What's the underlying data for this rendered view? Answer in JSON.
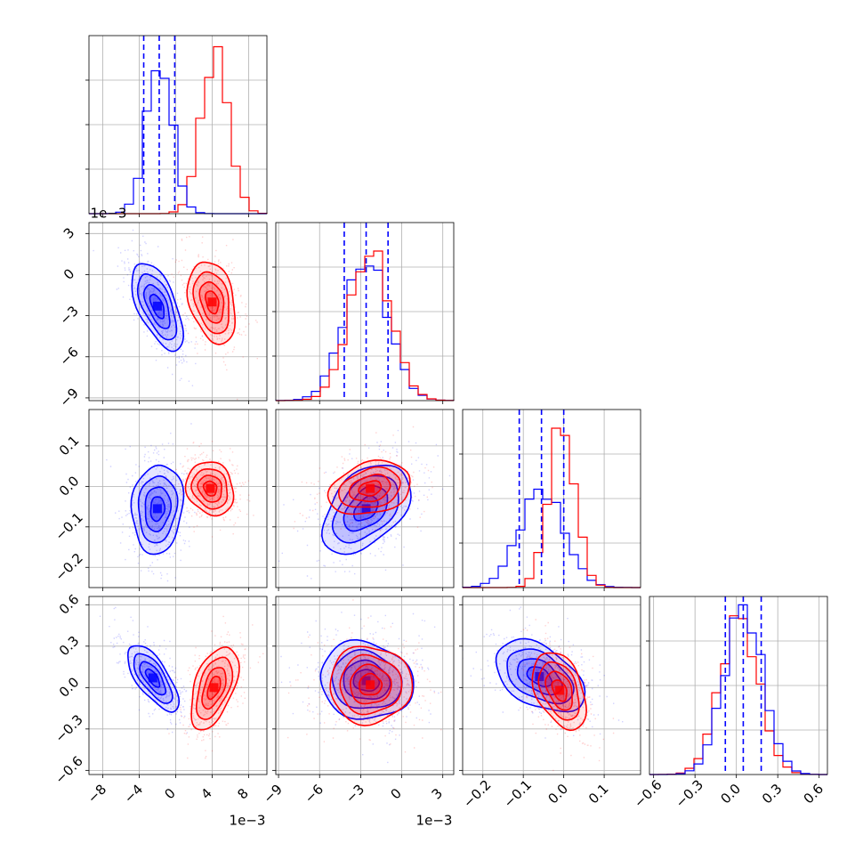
{
  "chart_data": {
    "type": "corner",
    "grid": true,
    "colors": {
      "series_a": "#0000ff",
      "series_b": "#ff0000"
    },
    "x_multiplier_labels": [
      "1e−3",
      "1e−3"
    ],
    "y_multiplier_label": "1e−3",
    "parameters": [
      {
        "range": [
          -9.5,
          10.0
        ],
        "scale": 0.001,
        "x_ticks": [
          -8,
          -4,
          0,
          4,
          8
        ],
        "x_tick_labels": [
          "−8",
          "−4",
          "0",
          "4",
          "8"
        ],
        "series_a": {
          "mean": -1.8,
          "sd": 1.4
        },
        "series_b": {
          "mean": 4.3,
          "sd": 1.5
        },
        "quantiles_a": [
          -3.5,
          -1.8,
          -0.1
        ]
      },
      {
        "range": [
          -9.2,
          3.8
        ],
        "scale": 0.001,
        "x_ticks": [
          -9,
          -6,
          -3,
          0,
          3
        ],
        "x_tick_labels": [
          "−9",
          "−6",
          "−3",
          "0",
          "3"
        ],
        "y_ticks": [
          -9,
          -6,
          -3,
          0,
          3
        ],
        "y_tick_labels": [
          "−9",
          "−6",
          "−3",
          "0",
          "3"
        ],
        "series_a": {
          "mean": -2.6,
          "sd": 1.6
        },
        "series_b": {
          "mean": -2.3,
          "sd": 1.5
        },
        "quantiles_a": [
          -4.2,
          -2.6,
          -1.0
        ]
      },
      {
        "range": [
          -0.25,
          0.19
        ],
        "scale": 1,
        "x_ticks": [
          -0.2,
          -0.1,
          0.0,
          0.1
        ],
        "x_tick_labels": [
          "−0.2",
          "−0.1",
          "0.0",
          "0.1"
        ],
        "y_ticks": [
          -0.2,
          -0.1,
          0.0,
          0.1
        ],
        "y_tick_labels": [
          "−0.2",
          "−0.1",
          "0.0",
          "0.1"
        ],
        "series_a": {
          "mean": -0.055,
          "sd": 0.055
        },
        "series_b": {
          "mean": -0.005,
          "sd": 0.033
        },
        "quantiles_a": [
          -0.11,
          -0.055,
          0.0
        ]
      },
      {
        "range": [
          -0.63,
          0.66
        ],
        "scale": 1,
        "x_ticks": [
          -0.6,
          -0.3,
          0.0,
          0.3,
          0.6
        ],
        "x_tick_labels": [
          "−0.6",
          "−0.3",
          "0.0",
          "0.3",
          "0.6"
        ],
        "y_ticks": [
          -0.6,
          -0.3,
          0.0,
          0.3,
          0.6
        ],
        "y_tick_labels": [
          "−0.6",
          "−0.3",
          "0.0",
          "0.3",
          "0.6"
        ],
        "series_a": {
          "mean": 0.05,
          "sd": 0.14
        },
        "series_b": {
          "mean": 0.02,
          "sd": 0.14
        },
        "quantiles_a": [
          -0.08,
          0.05,
          0.18
        ]
      }
    ],
    "pairs": [
      {
        "row": 1,
        "col": 0,
        "series_a": {
          "center": [
            -2.0,
            -2.3
          ],
          "sd": [
            1.4,
            1.6
          ],
          "corr": -0.6
        },
        "series_b": {
          "center": [
            4.0,
            -2.0
          ],
          "sd": [
            1.3,
            1.5
          ],
          "corr": -0.3
        }
      },
      {
        "row": 2,
        "col": 0,
        "series_a": {
          "center": [
            -2.0,
            -0.055
          ],
          "sd": [
            1.4,
            0.055
          ],
          "corr": 0.1
        },
        "series_b": {
          "center": [
            3.8,
            -0.005
          ],
          "sd": [
            1.3,
            0.033
          ],
          "corr": -0.15
        }
      },
      {
        "row": 2,
        "col": 1,
        "series_a": {
          "center": [
            -2.6,
            -0.055
          ],
          "sd": [
            1.6,
            0.055
          ],
          "corr": 0.45
        },
        "series_b": {
          "center": [
            -2.3,
            -0.005
          ],
          "sd": [
            1.5,
            0.033
          ],
          "corr": 0.25
        }
      },
      {
        "row": 3,
        "col": 0,
        "series_a": {
          "center": [
            -2.5,
            0.07
          ],
          "sd": [
            1.4,
            0.12
          ],
          "corr": -0.7
        },
        "series_b": {
          "center": [
            4.2,
            0.0
          ],
          "sd": [
            1.3,
            0.15
          ],
          "corr": 0.5
        }
      },
      {
        "row": 3,
        "col": 1,
        "series_a": {
          "center": [
            -2.6,
            0.05
          ],
          "sd": [
            1.7,
            0.14
          ],
          "corr": -0.1
        },
        "series_b": {
          "center": [
            -2.3,
            0.02
          ],
          "sd": [
            1.5,
            0.14
          ],
          "corr": 0.0
        }
      },
      {
        "row": 3,
        "col": 2,
        "series_a": {
          "center": [
            -0.06,
            0.08
          ],
          "sd": [
            0.055,
            0.13
          ],
          "corr": -0.45
        },
        "series_b": {
          "center": [
            -0.01,
            -0.02
          ],
          "sd": [
            0.033,
            0.14
          ],
          "corr": -0.4
        }
      }
    ]
  }
}
